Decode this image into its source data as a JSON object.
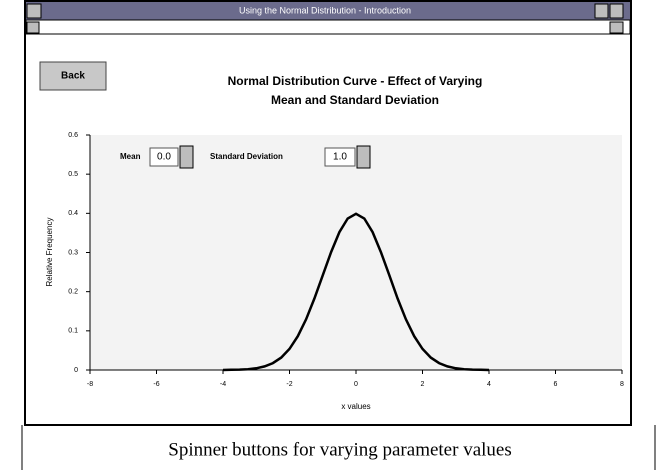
{
  "window": {
    "title": "Using the Normal Distribution - Introduction"
  },
  "back_button": "Back",
  "controls": {
    "mean_label": "Mean",
    "mean_value": "0.0",
    "sd_label": "Standard Deviation",
    "sd_value": "1.0"
  },
  "chart_data": {
    "type": "line",
    "title": [
      "Normal Distribution Curve - Effect of Varying",
      "Mean and Standard Deviation"
    ],
    "x_label": "x values",
    "y_label": "Relative Frequency",
    "xlim": [
      -8,
      8
    ],
    "ylim": [
      0,
      0.6
    ],
    "xticks": [
      -8,
      -6,
      -4,
      -2,
      0,
      2,
      4,
      6,
      8
    ],
    "yticks": [
      0,
      0.1,
      0.2,
      0.3,
      0.4,
      0.5,
      0.6
    ],
    "color": "#000000",
    "x": [
      -4,
      -3.75,
      -3.5,
      -3.25,
      -3,
      -2.75,
      -2.5,
      -2.25,
      -2,
      -1.75,
      -1.5,
      -1.25,
      -1,
      -0.75,
      -0.5,
      -0.25,
      0,
      0.25,
      0.5,
      0.75,
      1,
      1.25,
      1.5,
      1.75,
      2,
      2.25,
      2.5,
      2.75,
      3,
      3.25,
      3.5,
      3.75,
      4
    ],
    "y": [
      0.0001,
      0.0004,
      0.0009,
      0.002,
      0.0044,
      0.0091,
      0.0175,
      0.0317,
      0.054,
      0.0863,
      0.1295,
      0.1826,
      0.242,
      0.3011,
      0.3521,
      0.3867,
      0.3989,
      0.3867,
      0.3521,
      0.3011,
      0.242,
      0.1826,
      0.1295,
      0.0863,
      0.054,
      0.0317,
      0.0175,
      0.0091,
      0.0044,
      0.002,
      0.0009,
      0.0004,
      0.0001
    ]
  },
  "caption": "Spinner buttons for varying parameter values"
}
